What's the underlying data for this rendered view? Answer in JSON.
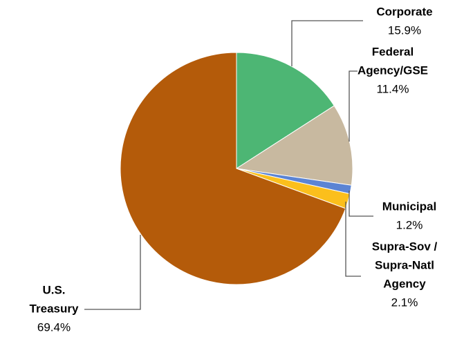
{
  "chart_data": {
    "type": "pie",
    "categories": [
      [
        "Corporate"
      ],
      [
        "Federal",
        "Agency/GSE"
      ],
      [
        "Municipal"
      ],
      [
        "Supra-Sov /",
        "Supra-Natl",
        "Agency"
      ],
      [
        "U.S.",
        "Treasury"
      ]
    ],
    "values": [
      15.9,
      11.4,
      1.2,
      2.1,
      69.4
    ],
    "value_labels": [
      "15.9%",
      "11.4%",
      "1.2%",
      "2.1%",
      "69.4%"
    ],
    "colors": [
      "#4db674",
      "#c8b9a0",
      "#5b84d4",
      "#fbbf1c",
      "#b45b0a"
    ]
  }
}
